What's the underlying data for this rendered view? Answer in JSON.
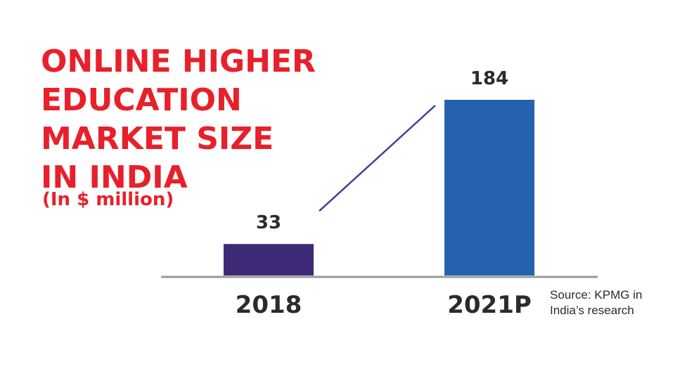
{
  "chart_data": {
    "type": "bar",
    "title_lines": [
      "ONLINE HIGHER",
      "EDUCATION",
      "MARKET SIZE",
      "IN INDIA"
    ],
    "subtitle": "(In $ million)",
    "categories": [
      "2018",
      "2021P"
    ],
    "values": [
      33,
      184
    ],
    "bar_colors": [
      "#3f2a78",
      "#2462ae"
    ],
    "trend_line_color": "#4a3a99",
    "axis_color": "#9a9a9a",
    "ylim": [
      0,
      200
    ],
    "grid": false,
    "source_lines": [
      "Source: KPMG in",
      "India’s research"
    ]
  },
  "colors": {
    "title": "#e8202a",
    "text": "#2b2b2b"
  }
}
